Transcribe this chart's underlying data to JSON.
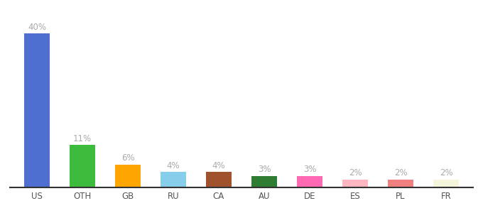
{
  "categories": [
    "US",
    "OTH",
    "GB",
    "RU",
    "CA",
    "AU",
    "DE",
    "ES",
    "PL",
    "FR"
  ],
  "values": [
    40,
    11,
    6,
    4,
    4,
    3,
    3,
    2,
    2,
    2
  ],
  "bar_colors": [
    "#4F6FD0",
    "#3CBB3C",
    "#FFA500",
    "#87CEEB",
    "#A0522D",
    "#2E7D32",
    "#FF69B4",
    "#FFB6C1",
    "#F08080",
    "#F5F5DC"
  ],
  "ylim": [
    0,
    46
  ],
  "background_color": "#ffffff",
  "label_color": "#aaaaaa",
  "label_fontsize": 8.5,
  "tick_fontsize": 8.5,
  "bar_width": 0.55
}
